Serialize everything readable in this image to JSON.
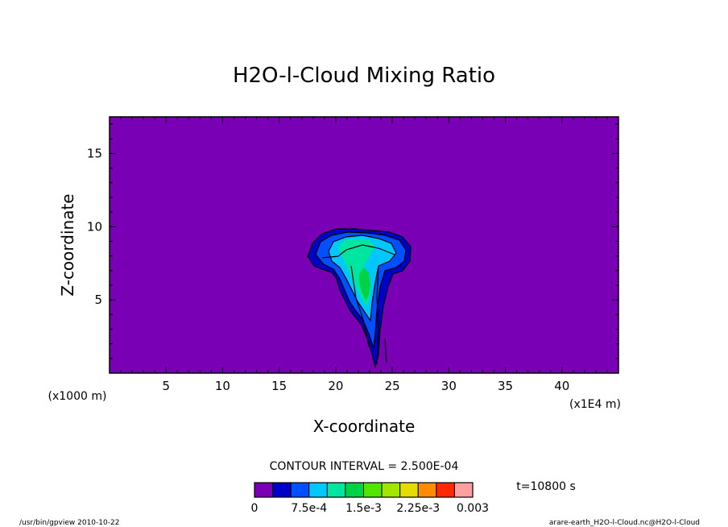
{
  "chart_data": {
    "type": "contour",
    "title": "H2O-l-Cloud Mixing Ratio",
    "xlabel": "X-coordinate",
    "ylabel": "Z-coordinate",
    "x_unit": "(x1E4 m)",
    "y_unit": "(x1000 m)",
    "xlim": [
      0,
      45
    ],
    "ylim": [
      0,
      17.5
    ],
    "x_ticks": [
      5,
      10,
      15,
      20,
      25,
      30,
      35,
      40
    ],
    "y_ticks": [
      5,
      10,
      15
    ],
    "contour_interval_label": "CONTOUR INTERVAL = 2.500E-04",
    "time_label": "t=10800 s",
    "background_color": "#7a00b6",
    "colorbar": {
      "colors": [
        "#7a00b6",
        "#0000c8",
        "#0050ff",
        "#00c8ff",
        "#00e6a0",
        "#00d246",
        "#50e600",
        "#a0e600",
        "#e6dc00",
        "#ff8c00",
        "#ff2800",
        "#ffa0a0"
      ],
      "labels": [
        "0",
        "7.5e-4",
        "1.5e-3",
        "2.25e-3",
        "0.003"
      ],
      "label_values": [
        0,
        0.00075,
        0.0015,
        0.00225,
        0.003
      ],
      "range": [
        0,
        0.003
      ]
    },
    "cloud_extent": {
      "anvil_x_range": [
        17.5,
        26.5
      ],
      "anvil_z_range": [
        7.0,
        10.2
      ],
      "stem_x_range": [
        21.5,
        24.5
      ],
      "stem_z_range": [
        0.3,
        7.0
      ],
      "max_value_approx": 0.0015
    }
  },
  "footer": {
    "program": "/usr/bin/gpview  2010-10-22",
    "source": "arare-earth_H2O-l-Cloud.nc@H2O-l-Cloud"
  }
}
